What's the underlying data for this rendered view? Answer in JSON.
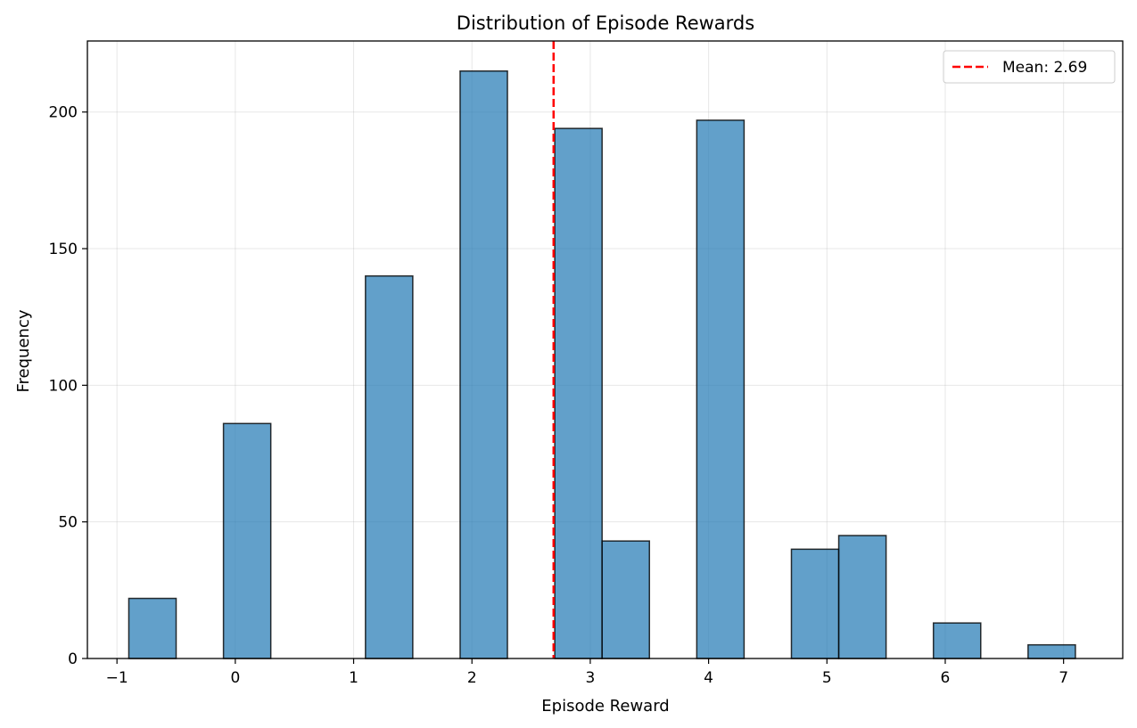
{
  "chart_data": {
    "type": "bar",
    "title": "Distribution of Episode Rewards",
    "xlabel": "Episode Reward",
    "ylabel": "Frequency",
    "xlim": [
      -1.25,
      7.5
    ],
    "ylim": [
      0,
      226
    ],
    "xticks": [
      -1,
      0,
      1,
      2,
      3,
      4,
      5,
      6,
      7
    ],
    "xtick_labels": [
      "−1",
      "0",
      "1",
      "2",
      "3",
      "4",
      "5",
      "6",
      "7"
    ],
    "yticks": [
      0,
      50,
      100,
      150,
      200
    ],
    "grid": true,
    "legend_position": "top-right",
    "bins": [
      {
        "x0": -0.9,
        "x1": -0.5,
        "count": 22
      },
      {
        "x0": -0.1,
        "x1": 0.3,
        "count": 86
      },
      {
        "x0": 1.1,
        "x1": 1.5,
        "count": 140
      },
      {
        "x0": 1.9,
        "x1": 2.3,
        "count": 215
      },
      {
        "x0": 2.7,
        "x1": 3.1,
        "count": 194
      },
      {
        "x0": 3.1,
        "x1": 3.5,
        "count": 43
      },
      {
        "x0": 3.9,
        "x1": 4.3,
        "count": 197
      },
      {
        "x0": 4.7,
        "x1": 5.1,
        "count": 40
      },
      {
        "x0": 5.1,
        "x1": 5.5,
        "count": 45
      },
      {
        "x0": 5.9,
        "x1": 6.3,
        "count": 13
      },
      {
        "x0": 6.7,
        "x1": 7.1,
        "count": 5
      }
    ],
    "mean": 2.69,
    "mean_label": "Mean: 2.69",
    "colors": {
      "bar_fill": "#1f77b4",
      "bar_edge": "#000000",
      "mean_line": "#ff0000",
      "grid": "#b0b0b0"
    }
  }
}
